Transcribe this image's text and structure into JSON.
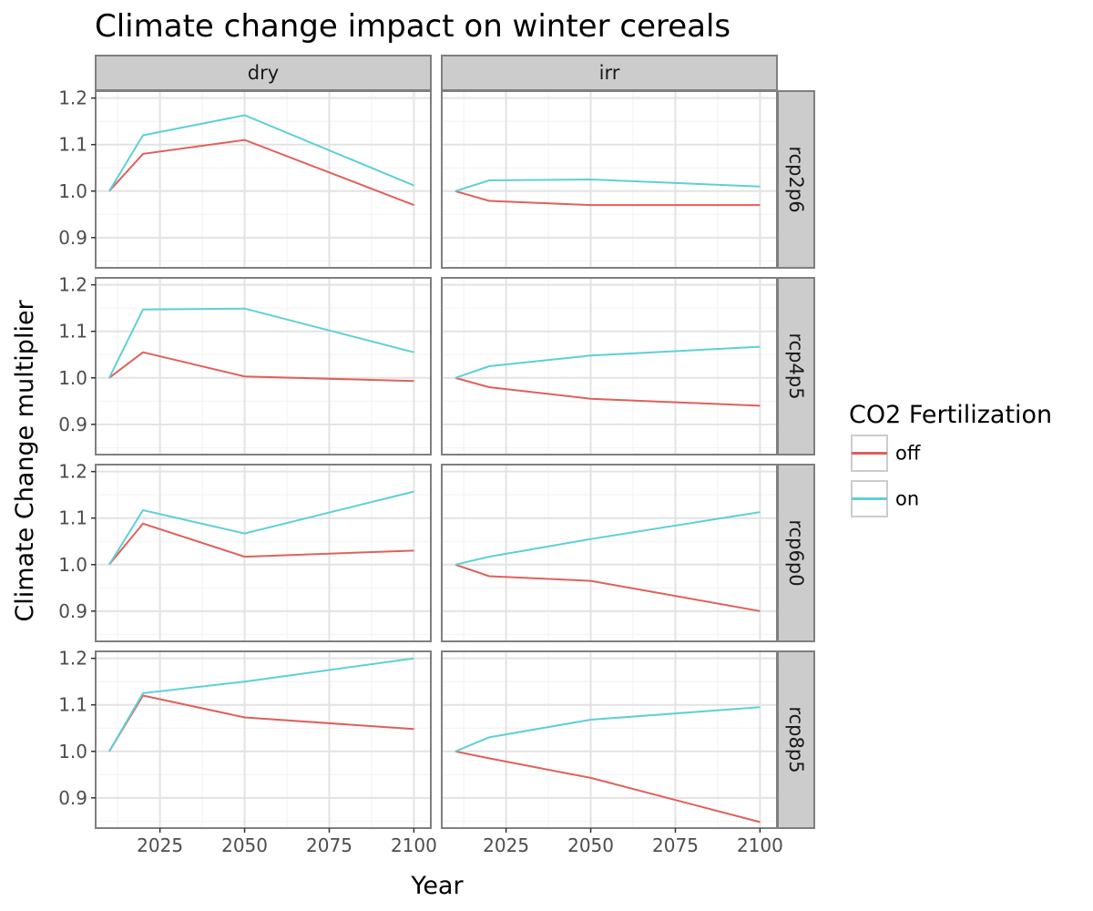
{
  "chart_data": {
    "type": "line",
    "title": "Climate change impact on winter cereals",
    "xlabel": "Year",
    "ylabel": "Climate Change multiplier",
    "x_ticks": [
      2025,
      2050,
      2075,
      2100
    ],
    "y_ticks": [
      "0.9",
      "1.0",
      "1.1",
      "1.2"
    ],
    "xlim": [
      2006,
      2105
    ],
    "ylim": [
      0.835,
      1.215
    ],
    "grid": true,
    "legend": {
      "title": "CO2 Fertilization",
      "position": "right",
      "entries": [
        {
          "name": "off",
          "color": "#E0605A"
        },
        {
          "name": "on",
          "color": "#5DD0D6"
        }
      ]
    },
    "columns": [
      "dry",
      "irr"
    ],
    "rows": [
      "rcp2p6",
      "rcp4p5",
      "rcp6p0",
      "rcp8p5"
    ],
    "x": [
      2010,
      2020,
      2050,
      2100
    ],
    "panels": [
      {
        "col": "dry",
        "row": "rcp2p6",
        "series": [
          {
            "name": "off",
            "values": [
              1.0,
              1.08,
              1.11,
              0.97
            ]
          },
          {
            "name": "on",
            "values": [
              1.0,
              1.12,
              1.163,
              1.012
            ]
          }
        ]
      },
      {
        "col": "irr",
        "row": "rcp2p6",
        "series": [
          {
            "name": "off",
            "values": [
              1.0,
              0.979,
              0.97,
              0.97
            ]
          },
          {
            "name": "on",
            "values": [
              1.0,
              1.023,
              1.025,
              1.01
            ]
          }
        ]
      },
      {
        "col": "dry",
        "row": "rcp4p5",
        "series": [
          {
            "name": "off",
            "values": [
              1.0,
              1.055,
              1.003,
              0.993
            ]
          },
          {
            "name": "on",
            "values": [
              1.0,
              1.147,
              1.149,
              1.055
            ]
          }
        ]
      },
      {
        "col": "irr",
        "row": "rcp4p5",
        "series": [
          {
            "name": "off",
            "values": [
              1.0,
              0.98,
              0.955,
              0.94
            ]
          },
          {
            "name": "on",
            "values": [
              1.0,
              1.025,
              1.048,
              1.067
            ]
          }
        ]
      },
      {
        "col": "dry",
        "row": "rcp6p0",
        "series": [
          {
            "name": "off",
            "values": [
              1.0,
              1.088,
              1.017,
              1.03
            ]
          },
          {
            "name": "on",
            "values": [
              1.0,
              1.117,
              1.067,
              1.157
            ]
          }
        ]
      },
      {
        "col": "irr",
        "row": "rcp6p0",
        "series": [
          {
            "name": "off",
            "values": [
              1.0,
              0.975,
              0.965,
              0.9
            ]
          },
          {
            "name": "on",
            "values": [
              1.0,
              1.017,
              1.055,
              1.113
            ]
          }
        ]
      },
      {
        "col": "dry",
        "row": "rcp8p5",
        "series": [
          {
            "name": "off",
            "values": [
              1.0,
              1.12,
              1.073,
              1.048
            ]
          },
          {
            "name": "on",
            "values": [
              1.0,
              1.125,
              1.15,
              1.2
            ]
          }
        ]
      },
      {
        "col": "irr",
        "row": "rcp8p5",
        "series": [
          {
            "name": "off",
            "values": [
              1.0,
              0.985,
              0.943,
              0.848
            ]
          },
          {
            "name": "on",
            "values": [
              1.0,
              1.03,
              1.068,
              1.095
            ]
          }
        ]
      }
    ]
  }
}
